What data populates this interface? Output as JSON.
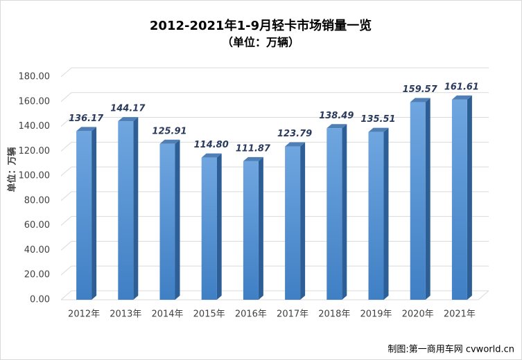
{
  "chart_data": {
    "type": "bar3d",
    "title": "2012-2021年1-9月轻卡市场销量一览",
    "subtitle": "（单位：万辆）",
    "y_label": "单位：万辆",
    "categories": [
      "2012年",
      "2013年",
      "2014年",
      "2015年",
      "2016年",
      "2017年",
      "2018年",
      "2019年",
      "2020年",
      "2021年"
    ],
    "values": [
      136.17,
      144.17,
      125.91,
      114.8,
      111.87,
      123.79,
      138.49,
      135.51,
      159.57,
      161.61
    ],
    "value_labels": [
      "136.17",
      "144.17",
      "125.91",
      "114.80",
      "111.87",
      "123.79",
      "138.49",
      "135.51",
      "159.57",
      "161.61"
    ],
    "color": "#4a89cf",
    "ylim": [
      0,
      180
    ],
    "yticks": [
      {
        "value": 0,
        "label": "0.00"
      },
      {
        "value": 20,
        "label": "20.00"
      },
      {
        "value": 40,
        "label": "40.00"
      },
      {
        "value": 60,
        "label": "60.00"
      },
      {
        "value": 80,
        "label": "80.00"
      },
      {
        "value": 100,
        "label": "100.00"
      },
      {
        "value": 120,
        "label": "120.00"
      },
      {
        "value": 140,
        "label": "140.00"
      },
      {
        "value": 160,
        "label": "160.00"
      },
      {
        "value": 180,
        "label": "180.00"
      }
    ],
    "grid": true,
    "source": "制图:第一商用车网 cvworld.cn"
  }
}
